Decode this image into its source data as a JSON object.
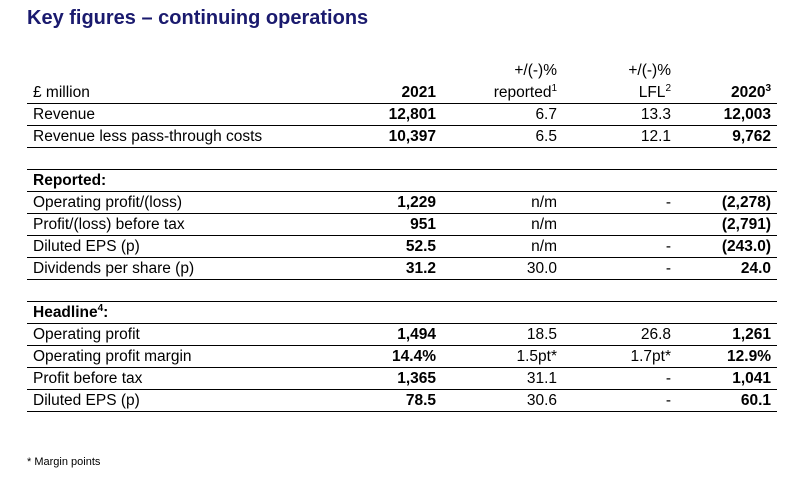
{
  "title": "Key figures – continuing operations",
  "header": {
    "col2_top": "+/(-)%",
    "col3_top": "+/(-)%",
    "col0": "£ million",
    "col1": "2021",
    "col2": "reported",
    "col2_sup": "1",
    "col3": "LFL",
    "col3_sup": "2",
    "col4": "2020",
    "col4_sup": "3"
  },
  "rows_top": [
    {
      "label": "Revenue",
      "y2021": "12,801",
      "reported": "6.7",
      "lfl": "13.3",
      "y2020": "12,003"
    },
    {
      "label": "Revenue less pass-through costs",
      "y2021": "10,397",
      "reported": "6.5",
      "lfl": "12.1",
      "y2020": "9,762"
    }
  ],
  "reported_heading": "Reported:",
  "rows_reported": [
    {
      "label": "Operating profit/(loss)",
      "y2021": "1,229",
      "reported": "n/m",
      "lfl": "-",
      "y2020": "(2,278)"
    },
    {
      "label": "Profit/(loss) before tax",
      "y2021": "951",
      "reported": "n/m",
      "lfl": "",
      "y2020": "(2,791)"
    },
    {
      "label": "Diluted EPS (p)",
      "y2021": "52.5",
      "reported": "n/m",
      "lfl": "-",
      "y2020": "(243.0)"
    },
    {
      "label": "Dividends per share (p)",
      "y2021": "31.2",
      "reported": "30.0",
      "lfl": "-",
      "y2020": "24.0"
    }
  ],
  "headline_heading": "Headline",
  "headline_sup": "4",
  "headline_colon": ":",
  "rows_headline": [
    {
      "label": "Operating profit",
      "y2021": "1,494",
      "reported": "18.5",
      "lfl": "26.8",
      "y2020": "1,261"
    },
    {
      "label": "Operating profit margin",
      "y2021": "14.4%",
      "reported": "1.5pt*",
      "lfl": "1.7pt*",
      "y2020": "12.9%"
    },
    {
      "label": "Profit before tax",
      "y2021": "1,365",
      "reported": "31.1",
      "lfl": "-",
      "y2020": "1,041"
    },
    {
      "label": "Diluted EPS (p)",
      "y2021": "78.5",
      "reported": "30.6",
      "lfl": "-",
      "y2020": "60.1"
    }
  ],
  "footnote": "* Margin points"
}
